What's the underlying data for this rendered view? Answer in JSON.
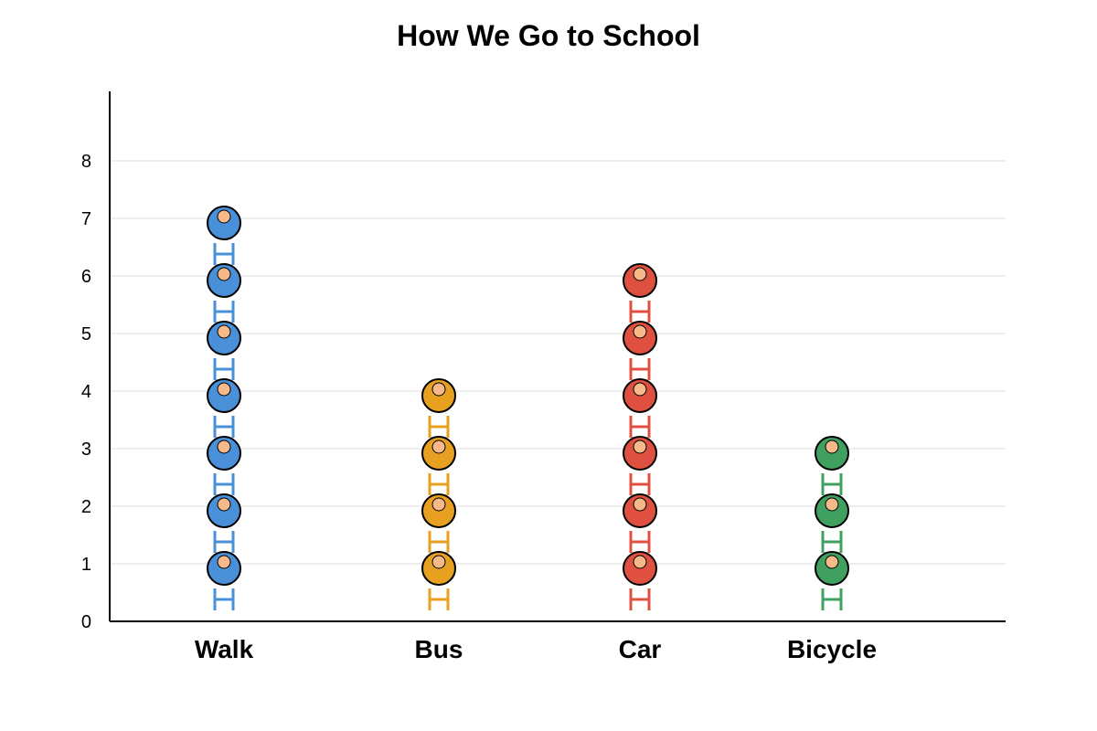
{
  "chart_data": {
    "type": "pictograph",
    "title": "How We Go to School",
    "xlabel": "",
    "ylabel": "",
    "categories": [
      "Walk",
      "Bus",
      "Car",
      "Bicycle"
    ],
    "values": [
      7,
      4,
      6,
      3
    ],
    "colors": [
      "#4a90d9",
      "#e8a020",
      "#e05040",
      "#40a060"
    ],
    "skin_color": "#f5b98a",
    "y_ticks": [
      0,
      1,
      2,
      3,
      4,
      5,
      6,
      7,
      8
    ],
    "ylim": [
      0,
      9
    ],
    "grid": true,
    "icon": "person-icon"
  }
}
